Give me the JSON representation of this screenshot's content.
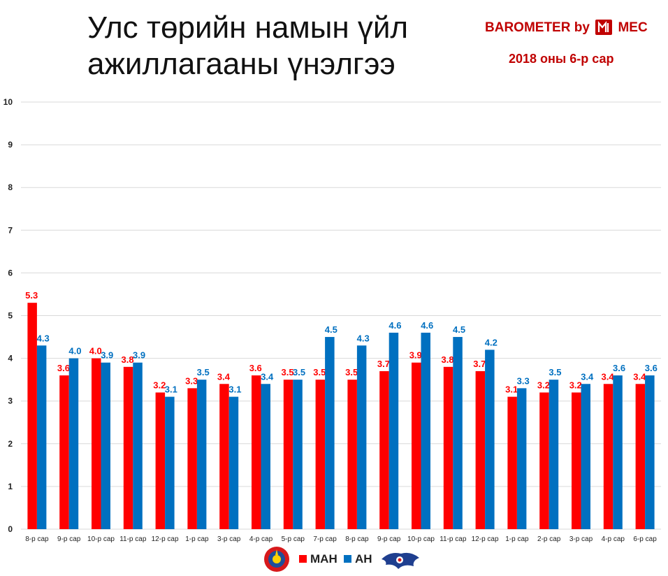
{
  "title": "Улс төрийн намын үйл ажиллагааны үнэлгээ",
  "brand": {
    "text": "BAROMETER by",
    "logo_text": "MEC",
    "color": "#c00000"
  },
  "date": "2018 оны 6-р сар",
  "legend": [
    {
      "name": "МАН",
      "color": "#ff0000",
      "icon": "man-party-emblem-icon"
    },
    {
      "name": "АН",
      "color": "#0070c0",
      "icon": "an-party-emblem-icon"
    }
  ],
  "chart_data": {
    "type": "bar",
    "categories": [
      "8-р сар",
      "9-р сар",
      "10-р сар",
      "11-р сар",
      "12-р сар",
      "1-р сар",
      "3-р сар",
      "4-р сар",
      "5-р сар",
      "7-р сар",
      "8-р сар",
      "9-р сар",
      "10-р сар",
      "11-р сар",
      "12-р сар",
      "1-р сар",
      "2-р сар",
      "3-р сар",
      "4-р сар",
      "6-р сар"
    ],
    "series": [
      {
        "name": "МАН",
        "color": "#ff0000",
        "values": [
          5.3,
          3.6,
          4.0,
          3.8,
          3.2,
          3.3,
          3.4,
          3.6,
          3.5,
          3.5,
          3.5,
          3.7,
          3.9,
          3.8,
          3.7,
          3.1,
          3.2,
          3.2,
          3.4,
          3.4
        ]
      },
      {
        "name": "АН",
        "color": "#0070c0",
        "values": [
          4.3,
          4.0,
          3.9,
          3.9,
          3.1,
          3.5,
          3.1,
          3.4,
          3.5,
          4.5,
          4.3,
          4.6,
          4.6,
          4.5,
          4.2,
          3.3,
          3.5,
          3.4,
          3.6,
          3.6
        ]
      }
    ],
    "yticks": [
      "0",
      "1",
      "2",
      "3",
      "4",
      "5",
      "6",
      "7",
      "8",
      "9",
      "10"
    ],
    "ylim": [
      0,
      10
    ],
    "grid": true,
    "legend_position": "bottom"
  }
}
